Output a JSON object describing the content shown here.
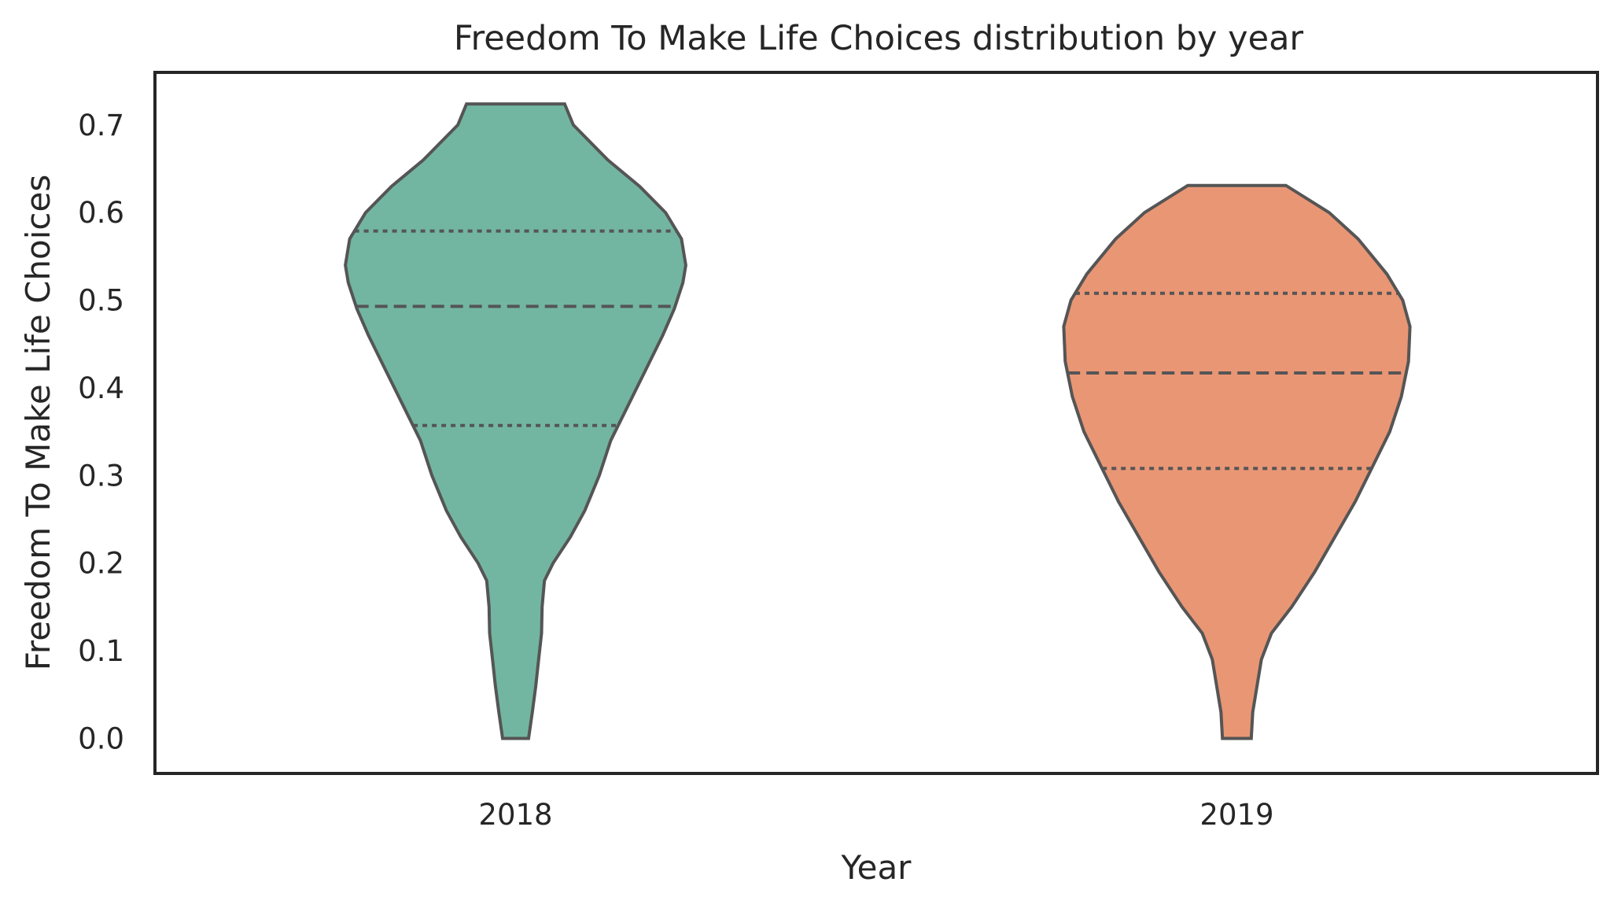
{
  "chart_data": {
    "type": "violin",
    "title": "Freedom To Make Life Choices distribution by year",
    "xlabel": "Year",
    "ylabel": "Freedom To Make Life Choices",
    "categories": [
      "2018",
      "2019"
    ],
    "yticks": [
      "0.0",
      "0.1",
      "0.2",
      "0.3",
      "0.4",
      "0.5",
      "0.6",
      "0.7"
    ],
    "ylim": [
      -0.04,
      0.76
    ],
    "grid": false,
    "inner": "quartile",
    "series": [
      {
        "category": "2018",
        "color": "#72b6a1",
        "min": 0.0,
        "max": 0.724,
        "q1": 0.357,
        "median": 0.493,
        "q3": 0.579,
        "density": [
          [
            0.0,
            0.045
          ],
          [
            0.03,
            0.058
          ],
          [
            0.06,
            0.07
          ],
          [
            0.09,
            0.08
          ],
          [
            0.12,
            0.09
          ],
          [
            0.15,
            0.092
          ],
          [
            0.18,
            0.1
          ],
          [
            0.2,
            0.13
          ],
          [
            0.23,
            0.19
          ],
          [
            0.26,
            0.24
          ],
          [
            0.3,
            0.29
          ],
          [
            0.34,
            0.33
          ],
          [
            0.38,
            0.39
          ],
          [
            0.42,
            0.45
          ],
          [
            0.46,
            0.51
          ],
          [
            0.49,
            0.55
          ],
          [
            0.52,
            0.58
          ],
          [
            0.54,
            0.59
          ],
          [
            0.57,
            0.575
          ],
          [
            0.6,
            0.52
          ],
          [
            0.63,
            0.43
          ],
          [
            0.66,
            0.32
          ],
          [
            0.7,
            0.2
          ],
          [
            0.724,
            0.17
          ]
        ]
      },
      {
        "category": "2019",
        "color": "#e99675",
        "min": 0.0,
        "max": 0.631,
        "q1": 0.308,
        "median": 0.417,
        "q3": 0.508,
        "density": [
          [
            0.0,
            0.05
          ],
          [
            0.03,
            0.055
          ],
          [
            0.06,
            0.07
          ],
          [
            0.09,
            0.085
          ],
          [
            0.12,
            0.12
          ],
          [
            0.15,
            0.19
          ],
          [
            0.19,
            0.27
          ],
          [
            0.23,
            0.34
          ],
          [
            0.27,
            0.41
          ],
          [
            0.31,
            0.47
          ],
          [
            0.35,
            0.53
          ],
          [
            0.39,
            0.57
          ],
          [
            0.43,
            0.595
          ],
          [
            0.47,
            0.6
          ],
          [
            0.5,
            0.575
          ],
          [
            0.53,
            0.52
          ],
          [
            0.57,
            0.42
          ],
          [
            0.6,
            0.32
          ],
          [
            0.631,
            0.17
          ]
        ]
      }
    ]
  }
}
